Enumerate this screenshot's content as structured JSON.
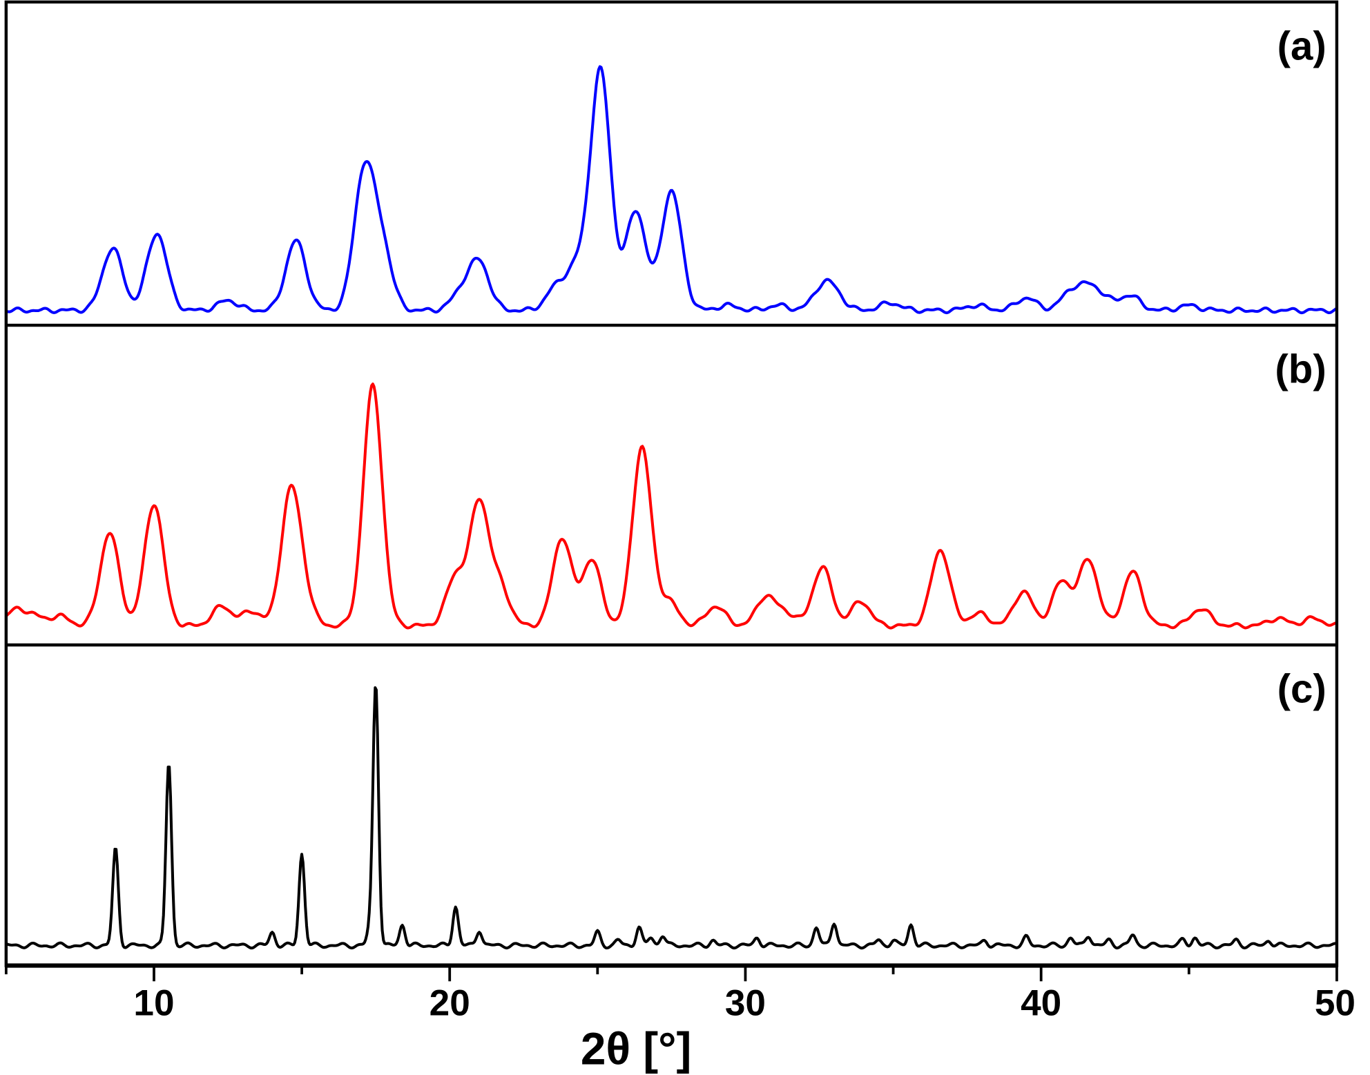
{
  "chart_data": {
    "type": "line",
    "title": "",
    "xlabel": "2θ [°]",
    "ylabel": "",
    "xlim": [
      5,
      50
    ],
    "x_ticks": [
      10,
      20,
      30,
      40,
      50
    ],
    "x_minor_ticks": [
      5,
      15,
      25,
      35,
      45
    ],
    "grid": false,
    "intensity_units": "relative (max = 100 per panel)",
    "panels": [
      {
        "label": "(a)",
        "color": "#0000ff",
        "fwhm": 0.8,
        "peaks": [
          [
            8.6,
            25
          ],
          [
            10.1,
            31
          ],
          [
            12.5,
            4
          ],
          [
            14.8,
            28
          ],
          [
            17.1,
            54
          ],
          [
            17.7,
            25
          ],
          [
            20.4,
            7
          ],
          [
            21.0,
            19
          ],
          [
            23.6,
            9
          ],
          [
            24.3,
            16
          ],
          [
            25.1,
            96
          ],
          [
            26.3,
            40
          ],
          [
            27.5,
            48
          ],
          [
            29.4,
            2
          ],
          [
            31.1,
            2
          ],
          [
            32.6,
            8
          ],
          [
            33.0,
            6
          ],
          [
            34.9,
            3
          ],
          [
            37.8,
            2
          ],
          [
            39.5,
            5
          ],
          [
            41.0,
            7
          ],
          [
            41.6,
            8
          ],
          [
            42.1,
            4
          ],
          [
            43.0,
            6
          ],
          [
            45.0,
            2
          ]
        ]
      },
      {
        "label": "(b)",
        "color": "#ff0000",
        "fwhm": 0.75,
        "peaks": [
          [
            5.3,
            6
          ],
          [
            5.9,
            4
          ],
          [
            6.8,
            4
          ],
          [
            8.5,
            38
          ],
          [
            10.0,
            50
          ],
          [
            12.3,
            8
          ],
          [
            13.3,
            6
          ],
          [
            14.6,
            50
          ],
          [
            15.0,
            14
          ],
          [
            17.4,
            98
          ],
          [
            20.2,
            20
          ],
          [
            21.0,
            50
          ],
          [
            21.7,
            16
          ],
          [
            23.8,
            36
          ],
          [
            24.8,
            27
          ],
          [
            26.5,
            73
          ],
          [
            27.4,
            10
          ],
          [
            29.0,
            8
          ],
          [
            30.7,
            12
          ],
          [
            31.4,
            5
          ],
          [
            32.6,
            24
          ],
          [
            33.9,
            10
          ],
          [
            36.6,
            31
          ],
          [
            37.9,
            5
          ],
          [
            39.4,
            14
          ],
          [
            40.7,
            18
          ],
          [
            41.6,
            27
          ],
          [
            43.1,
            22
          ],
          [
            45.4,
            7
          ],
          [
            48.0,
            3
          ],
          [
            49.2,
            3
          ]
        ]
      },
      {
        "label": "(c)",
        "color": "#000000",
        "fwhm": 0.22,
        "peaks": [
          [
            8.7,
            37
          ],
          [
            10.5,
            70
          ],
          [
            14.0,
            5
          ],
          [
            15.0,
            35
          ],
          [
            17.3,
            6
          ],
          [
            17.5,
            100
          ],
          [
            18.4,
            8
          ],
          [
            20.2,
            15
          ],
          [
            21.0,
            6
          ],
          [
            25.0,
            5
          ],
          [
            25.7,
            2
          ],
          [
            26.4,
            7
          ],
          [
            26.8,
            3
          ],
          [
            27.2,
            4
          ],
          [
            28.9,
            2
          ],
          [
            30.4,
            3
          ],
          [
            32.4,
            7
          ],
          [
            33.0,
            9
          ],
          [
            34.5,
            2
          ],
          [
            35.0,
            2
          ],
          [
            35.6,
            8
          ],
          [
            38.1,
            2
          ],
          [
            39.5,
            3
          ],
          [
            41.0,
            3
          ],
          [
            41.6,
            4
          ],
          [
            42.3,
            2
          ],
          [
            43.1,
            4
          ],
          [
            44.8,
            2
          ],
          [
            45.2,
            3
          ],
          [
            46.6,
            2
          ],
          [
            47.7,
            2
          ]
        ]
      }
    ]
  }
}
